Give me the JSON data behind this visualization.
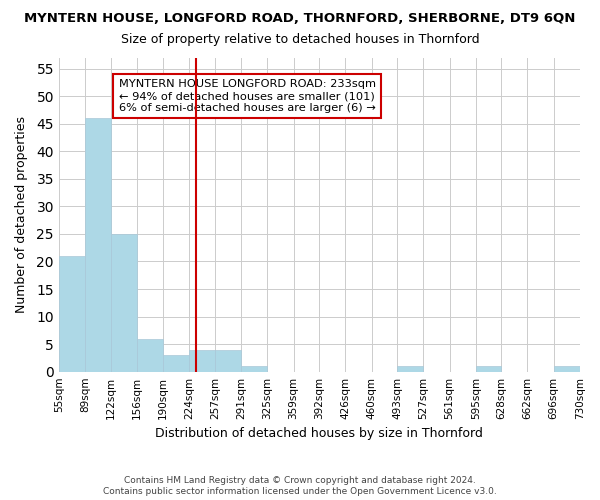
{
  "title": "MYNTERN HOUSE, LONGFORD ROAD, THORNFORD, SHERBORNE, DT9 6QN",
  "subtitle": "Size of property relative to detached houses in Thornford",
  "xlabel": "Distribution of detached houses by size in Thornford",
  "ylabel": "Number of detached properties",
  "bar_edges": [
    55,
    89,
    122,
    156,
    190,
    224,
    257,
    291,
    325,
    359,
    392,
    426,
    460,
    493,
    527,
    561,
    595,
    628,
    662,
    696,
    730
  ],
  "bar_heights": [
    21,
    46,
    25,
    6,
    3,
    4,
    4,
    1,
    0,
    0,
    0,
    0,
    0,
    1,
    0,
    0,
    1,
    0,
    0,
    1
  ],
  "bar_color": "#add8e6",
  "bar_edgecolor": "#aac8d8",
  "ylim": [
    0,
    57
  ],
  "yticks": [
    0,
    5,
    10,
    15,
    20,
    25,
    30,
    35,
    40,
    45,
    50,
    55
  ],
  "vline_x": 233,
  "vline_color": "#cc0000",
  "annotation_box_text": "MYNTERN HOUSE LONGFORD ROAD: 233sqm\n← 94% of detached houses are smaller (101)\n6% of semi-detached houses are larger (6) →",
  "footnote1": "Contains HM Land Registry data © Crown copyright and database right 2024.",
  "footnote2": "Contains public sector information licensed under the Open Government Licence v3.0.",
  "background_color": "#ffffff",
  "grid_color": "#cccccc",
  "xtick_labels": [
    "55sqm",
    "89sqm",
    "122sqm",
    "156sqm",
    "190sqm",
    "224sqm",
    "257sqm",
    "291sqm",
    "325sqm",
    "359sqm",
    "392sqm",
    "426sqm",
    "460sqm",
    "493sqm",
    "527sqm",
    "561sqm",
    "595sqm",
    "628sqm",
    "662sqm",
    "696sqm",
    "730sqm"
  ]
}
